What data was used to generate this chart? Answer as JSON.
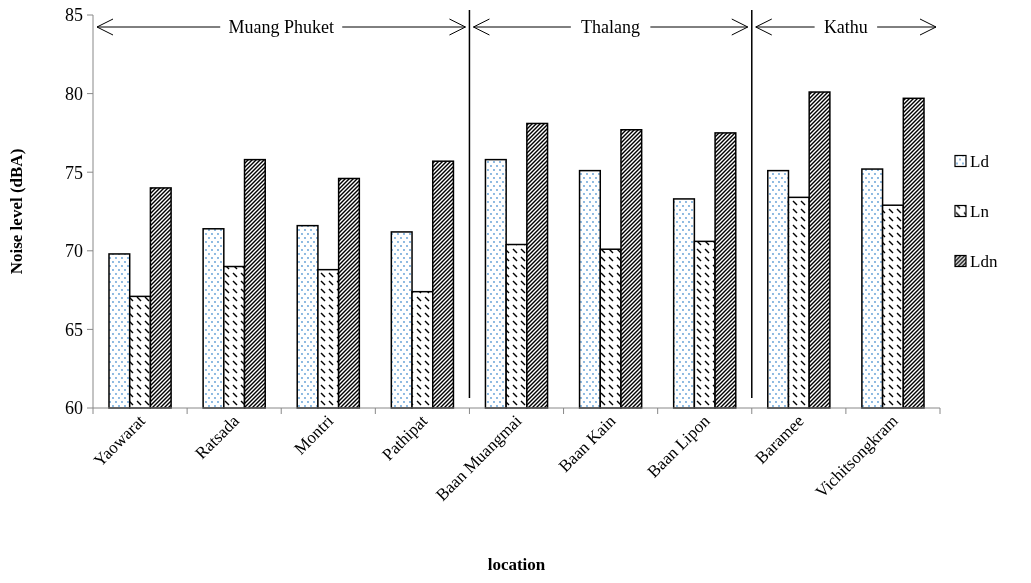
{
  "chart_data": {
    "type": "bar",
    "xlabel": "location",
    "ylabel": "Noise level (dBA)",
    "categories": [
      "Yaowarat",
      "Ratsada",
      "Montri",
      "Pathipat",
      "Baan Muangmai",
      "Baan Kain",
      "Baan Lipon",
      "Baramee",
      "Vichitsongkram"
    ],
    "series": [
      {
        "name": "Ld",
        "color": "#000000",
        "values": [
          69.8,
          71.4,
          71.6,
          71.2,
          75.8,
          75.1,
          73.3,
          75.1,
          75.2
        ]
      },
      {
        "name": "Ln",
        "color": "#000000",
        "values": [
          67.1,
          69.0,
          68.8,
          67.4,
          70.4,
          70.1,
          70.6,
          73.4,
          72.9
        ]
      },
      {
        "name": "Ldn",
        "color": "#000000",
        "values": [
          74.0,
          75.8,
          74.6,
          75.7,
          78.1,
          77.7,
          77.5,
          80.1,
          79.7
        ]
      }
    ],
    "ylim": [
      60,
      85
    ],
    "yticks": [
      60,
      65,
      70,
      75,
      80,
      85
    ],
    "grid": false,
    "legend": "right",
    "annotations": [
      "Muang Phuket",
      "Thalang",
      "Kathu"
    ]
  }
}
